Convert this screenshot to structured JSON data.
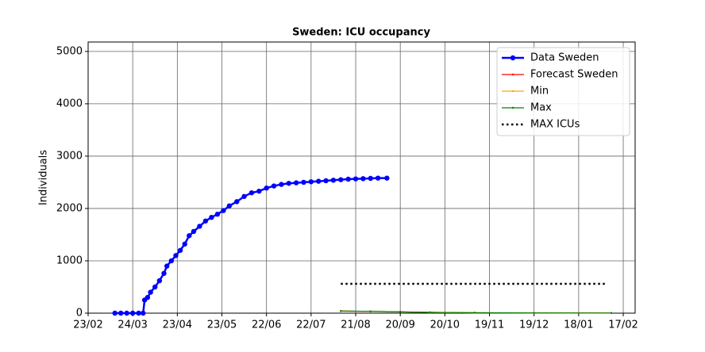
{
  "chart_data": {
    "type": "line",
    "title": "Sweden: ICU occupancy",
    "y_label": "Individuals",
    "xlim": [
      0,
      368
    ],
    "ylim": [
      0,
      5180
    ],
    "xticks": [
      {
        "value": 0,
        "label": "23/02"
      },
      {
        "value": 30,
        "label": "24/03"
      },
      {
        "value": 60,
        "label": "23/04"
      },
      {
        "value": 90,
        "label": "23/05"
      },
      {
        "value": 120,
        "label": "22/06"
      },
      {
        "value": 150,
        "label": "22/07"
      },
      {
        "value": 180,
        "label": "21/08"
      },
      {
        "value": 210,
        "label": "20/09"
      },
      {
        "value": 240,
        "label": "20/10"
      },
      {
        "value": 270,
        "label": "19/11"
      },
      {
        "value": 300,
        "label": "19/12"
      },
      {
        "value": 330,
        "label": "18/01"
      },
      {
        "value": 360,
        "label": "17/02"
      }
    ],
    "yticks": [
      0,
      1000,
      2000,
      3000,
      4000,
      5000
    ],
    "grid": true,
    "legend": "upper right",
    "series": [
      {
        "name": "Data Sweden",
        "color": "#0000ff",
        "marker": "o",
        "linestyle": "solid",
        "x": [
          18,
          22,
          26,
          30,
          34,
          37,
          38,
          40,
          42,
          45,
          48,
          51,
          53,
          56,
          59,
          62,
          65,
          68,
          71,
          75,
          79,
          83,
          87,
          91,
          95,
          100,
          105,
          110,
          115,
          120,
          125,
          130,
          135,
          140,
          145,
          150,
          155,
          160,
          165,
          170,
          175,
          180,
          185,
          190,
          195,
          201
        ],
        "values": [
          0,
          0,
          0,
          0,
          0,
          0,
          250,
          300,
          400,
          500,
          620,
          760,
          900,
          1000,
          1100,
          1200,
          1320,
          1480,
          1560,
          1660,
          1760,
          1830,
          1890,
          1960,
          2050,
          2130,
          2230,
          2300,
          2330,
          2390,
          2430,
          2460,
          2480,
          2490,
          2500,
          2510,
          2520,
          2530,
          2540,
          2550,
          2560,
          2565,
          2570,
          2575,
          2580,
          2580
        ]
      },
      {
        "name": "Forecast Sweden",
        "color": "#ff0000",
        "marker": ".",
        "linestyle": "solid",
        "x": [
          170,
          190,
          210,
          230,
          260,
          300,
          352
        ],
        "values": [
          40,
          35,
          25,
          15,
          8,
          5,
          3
        ]
      },
      {
        "name": "Min",
        "color": "#ffa500",
        "marker": ".",
        "linestyle": "solid",
        "x": [
          170,
          190,
          210,
          230,
          260,
          300,
          352
        ],
        "values": [
          40,
          35,
          25,
          15,
          8,
          5,
          3
        ]
      },
      {
        "name": "Max",
        "color": "#008000",
        "marker": ".",
        "linestyle": "solid",
        "x": [
          170,
          190,
          210,
          230,
          260,
          300,
          352
        ],
        "values": [
          40,
          35,
          25,
          15,
          8,
          5,
          3
        ]
      },
      {
        "name": "MAX ICUs",
        "color": "#000000",
        "marker": "none",
        "linestyle": "dotted",
        "x": [
          170,
          349
        ],
        "values": [
          560,
          560
        ]
      }
    ]
  }
}
